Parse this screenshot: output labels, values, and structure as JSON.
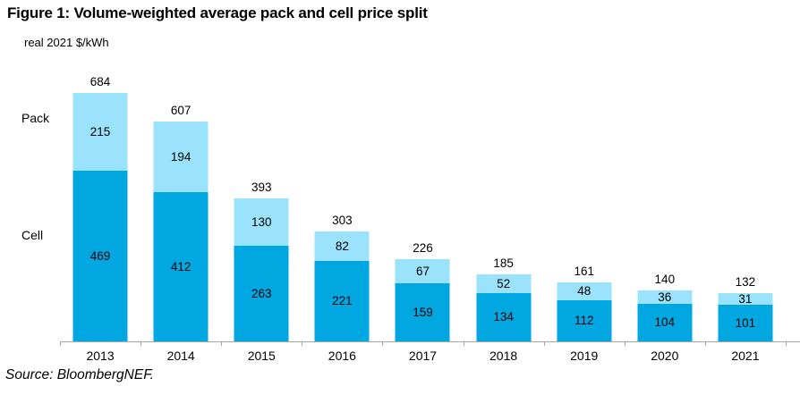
{
  "figure": {
    "title": "Figure 1: Volume-weighted average pack and cell price split",
    "unit_label": "real 2021 $/kWh",
    "source": "Source: BloombergNEF.",
    "side_labels": {
      "pack": "Pack",
      "cell": "Cell"
    }
  },
  "colors": {
    "cell": "#00a7e0",
    "pack": "#9be3fc",
    "axis": "#a6a6a6",
    "text": "#000000"
  },
  "chart_data": {
    "type": "bar",
    "stacked": true,
    "title": "Figure 1: Volume-weighted average pack and cell price split",
    "ylabel": "real 2021 $/kWh",
    "xlabel": "",
    "categories": [
      "2013",
      "2014",
      "2015",
      "2016",
      "2017",
      "2018",
      "2019",
      "2020",
      "2021"
    ],
    "series": [
      {
        "name": "Cell",
        "color_key": "cell",
        "values": [
          469,
          412,
          263,
          221,
          159,
          134,
          112,
          104,
          101
        ]
      },
      {
        "name": "Pack",
        "color_key": "pack",
        "values": [
          215,
          194,
          130,
          82,
          67,
          52,
          48,
          36,
          31
        ]
      }
    ],
    "totals": [
      684,
      607,
      393,
      303,
      226,
      185,
      161,
      140,
      132
    ],
    "ylim": [
      0,
      700
    ],
    "grid": false,
    "legend_position": "left-of-plot"
  }
}
